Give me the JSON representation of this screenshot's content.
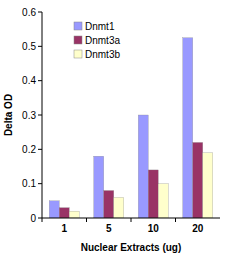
{
  "chart_data": {
    "type": "bar",
    "x_label": "Nuclear Extracts (ug)",
    "y_label": "Delta OD",
    "categories": [
      "1",
      "5",
      "10",
      "20"
    ],
    "series": [
      {
        "name": "Dnmt1",
        "color": "#9999ff",
        "values": [
          0.05,
          0.18,
          0.3,
          0.525
        ]
      },
      {
        "name": "Dnmt3a",
        "color": "#993366",
        "values": [
          0.03,
          0.08,
          0.14,
          0.22
        ]
      },
      {
        "name": "Dnmt3b",
        "color": "#ffffcc",
        "values": [
          0.02,
          0.06,
          0.1,
          0.19
        ]
      }
    ],
    "ylim": [
      0,
      0.6
    ],
    "yticks": [
      0,
      0.1,
      0.2,
      0.3,
      0.4,
      0.5,
      0.6
    ],
    "grid": false,
    "legend": "upper left"
  }
}
